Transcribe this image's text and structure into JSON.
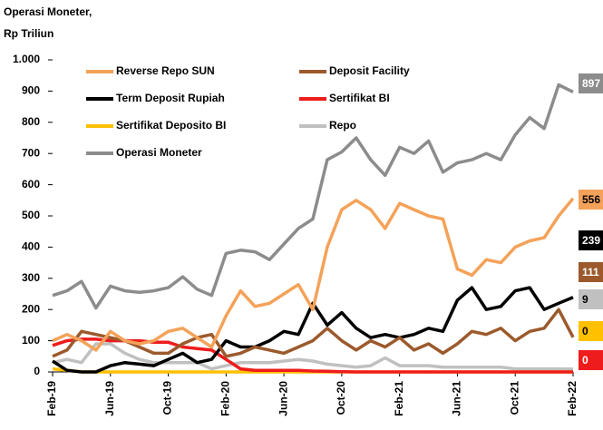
{
  "chart_data": {
    "type": "line",
    "title": "Operasi Moneter,",
    "subtitle": "Rp Triliun",
    "categories": [
      "Feb-19",
      null,
      null,
      null,
      "Jun-19",
      null,
      null,
      null,
      "Oct-19",
      null,
      null,
      null,
      "Feb-20",
      null,
      null,
      null,
      "Jun-20",
      null,
      null,
      null,
      "Oct-20",
      null,
      null,
      null,
      "Feb-21",
      null,
      null,
      null,
      "Jun-21",
      null,
      null,
      null,
      "Oct-21",
      null,
      null,
      null,
      "Feb-22"
    ],
    "ylim": [
      0,
      1000
    ],
    "yticks": [
      0,
      100,
      200,
      300,
      400,
      500,
      600,
      700,
      800,
      900,
      {
        "value": 1000,
        "label": "1.000"
      }
    ],
    "series": [
      {
        "name": "Reverse Repo SUN",
        "color": "#f4a259",
        "values": [
          100,
          120,
          100,
          70,
          130,
          100,
          90,
          100,
          130,
          140,
          110,
          80,
          180,
          260,
          210,
          220,
          250,
          280,
          200,
          400,
          520,
          550,
          520,
          460,
          540,
          520,
          500,
          490,
          330,
          310,
          360,
          350,
          400,
          420,
          430,
          500,
          556
        ]
      },
      {
        "name": "Deposit Facility",
        "color": "#9c5a2c",
        "values": [
          50,
          70,
          130,
          120,
          110,
          100,
          80,
          60,
          60,
          90,
          110,
          120,
          50,
          60,
          80,
          70,
          60,
          80,
          100,
          140,
          100,
          70,
          100,
          80,
          110,
          70,
          90,
          60,
          90,
          130,
          120,
          140,
          100,
          130,
          140,
          200,
          111
        ]
      },
      {
        "name": "Term Deposit Rupiah",
        "color": "#000000",
        "values": [
          35,
          5,
          0,
          0,
          20,
          30,
          25,
          20,
          40,
          60,
          30,
          40,
          100,
          80,
          80,
          100,
          130,
          120,
          220,
          150,
          190,
          140,
          110,
          120,
          110,
          120,
          140,
          130,
          230,
          270,
          200,
          210,
          260,
          270,
          200,
          220,
          239
        ]
      },
      {
        "name": "Sertifikat BI",
        "color": "#ee1c1c",
        "values": [
          85,
          100,
          105,
          105,
          100,
          100,
          100,
          95,
          95,
          80,
          75,
          70,
          40,
          10,
          5,
          5,
          5,
          5,
          3,
          2,
          1,
          0,
          0,
          0,
          0,
          0,
          0,
          0,
          0,
          0,
          0,
          0,
          0,
          0,
          0,
          0,
          0
        ]
      },
      {
        "name": "Sertifikat Deposito BI",
        "color": "#ffc000",
        "values": [
          10,
          5,
          0,
          0,
          0,
          0,
          0,
          0,
          0,
          0,
          0,
          0,
          0,
          0,
          0,
          0,
          0,
          0,
          0,
          0,
          0,
          0,
          0,
          0,
          0,
          0,
          0,
          0,
          0,
          0,
          0,
          0,
          0,
          0,
          0,
          0,
          0
        ]
      },
      {
        "name": "Repo",
        "color": "#c0c0c0",
        "values": [
          30,
          40,
          30,
          90,
          90,
          60,
          40,
          30,
          30,
          30,
          30,
          10,
          20,
          30,
          30,
          30,
          35,
          40,
          35,
          25,
          20,
          15,
          20,
          45,
          20,
          20,
          20,
          15,
          15,
          15,
          15,
          15,
          10,
          10,
          10,
          10,
          9
        ]
      },
      {
        "name": "Operasi Moneter",
        "color": "#8c8c8c",
        "values": [
          245,
          260,
          290,
          205,
          275,
          260,
          255,
          260,
          270,
          305,
          265,
          245,
          380,
          390,
          385,
          360,
          410,
          460,
          490,
          680,
          705,
          750,
          680,
          630,
          720,
          700,
          740,
          640,
          670,
          680,
          700,
          680,
          760,
          815,
          780,
          920,
          897
        ]
      }
    ]
  }
}
